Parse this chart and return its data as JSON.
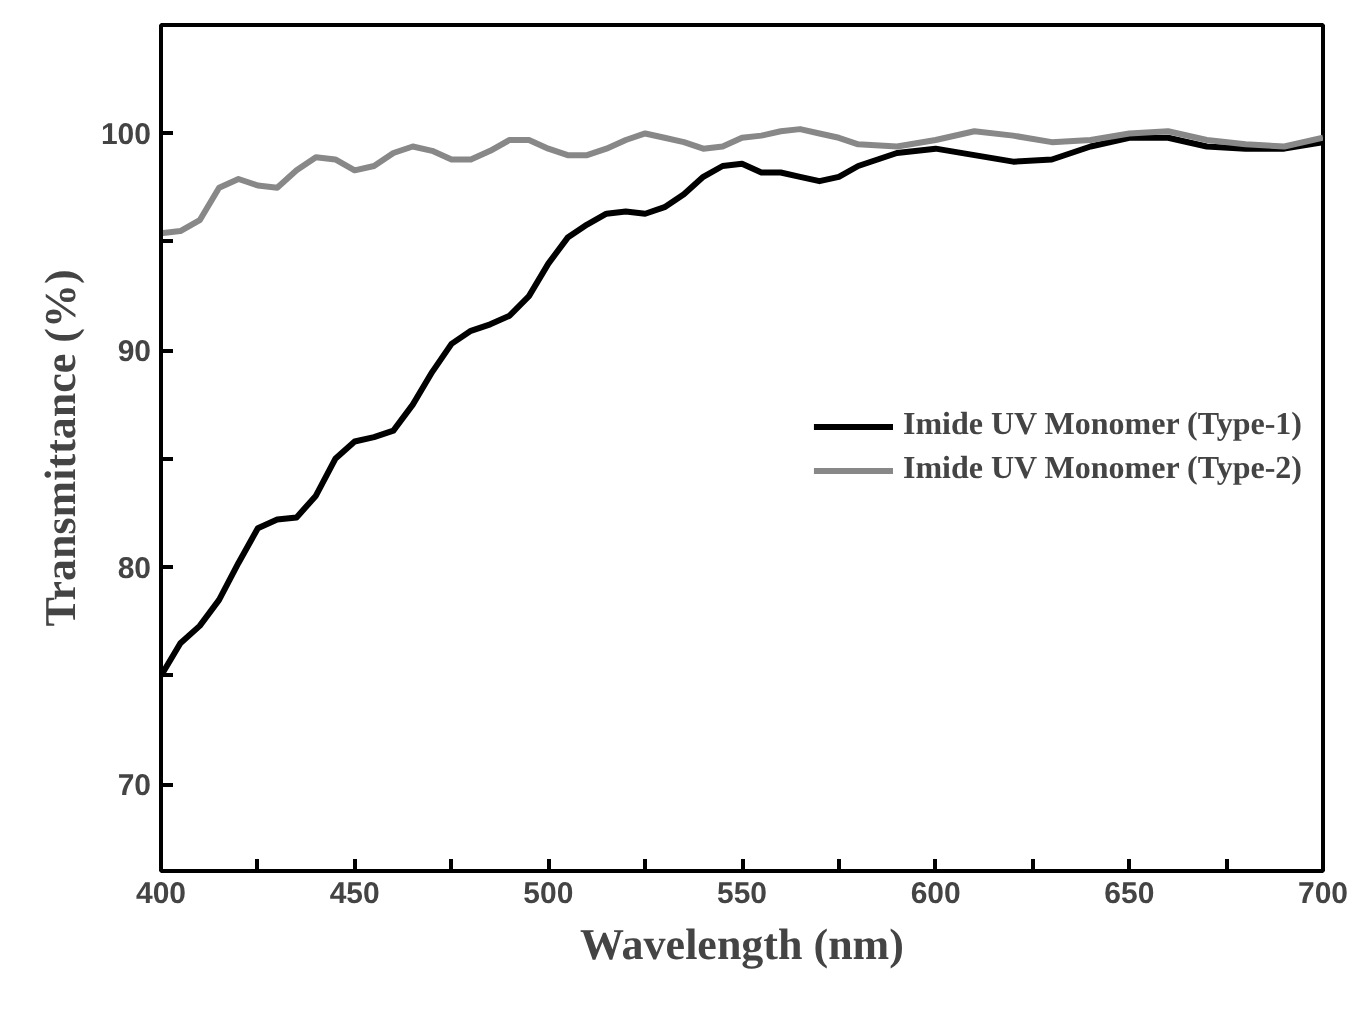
{
  "chart_data": {
    "type": "line",
    "xlabel": "Wavelength (nm)",
    "ylabel": "Transmittance (%)",
    "xlim": [
      400,
      700
    ],
    "xticks": [
      400,
      {
        "value": 425,
        "label": null
      },
      450,
      {
        "value": 475,
        "label": null
      },
      500,
      {
        "value": 525,
        "label": null
      },
      550,
      {
        "value": 575,
        "label": null
      },
      600,
      {
        "value": 625,
        "label": null
      },
      650,
      {
        "value": 675,
        "label": null
      },
      700
    ],
    "ylim": [
      66,
      105
    ],
    "yticks": [
      70,
      {
        "value": 75,
        "label": null
      },
      80,
      {
        "value": 85,
        "label": null
      },
      90,
      {
        "value": 95,
        "label": null
      },
      100
    ],
    "x": [
      400,
      405,
      410,
      415,
      420,
      425,
      430,
      435,
      440,
      445,
      450,
      455,
      460,
      465,
      470,
      475,
      480,
      485,
      490,
      495,
      500,
      505,
      510,
      515,
      520,
      525,
      530,
      535,
      540,
      545,
      550,
      555,
      560,
      565,
      570,
      575,
      580,
      590,
      600,
      610,
      620,
      630,
      640,
      650,
      660,
      670,
      680,
      690,
      700
    ],
    "series": [
      {
        "name": "Imide UV Monomer (Type-1)",
        "color": "#000000",
        "values": [
          75,
          76.5,
          77.3,
          78.5,
          80.2,
          81.8,
          82.2,
          82.3,
          83.3,
          85,
          85.8,
          86,
          86.3,
          87.5,
          89,
          90.3,
          90.9,
          91.2,
          91.6,
          92.5,
          94,
          95.2,
          95.8,
          96.3,
          96.4,
          96.3,
          96.6,
          97.2,
          98,
          98.5,
          98.6,
          98.2,
          98.2,
          98,
          97.8,
          98,
          98.5,
          99.1,
          99.3,
          99,
          98.7,
          98.8,
          99.4,
          99.8,
          99.8,
          99.4,
          99.3,
          99.3,
          99.6
        ]
      },
      {
        "name": "Imide UV Monomer (Type-2)",
        "color": "#888888",
        "values": [
          95.4,
          95.5,
          96,
          97.5,
          97.9,
          97.6,
          97.5,
          98.3,
          98.9,
          98.8,
          98.3,
          98.5,
          99.1,
          99.4,
          99.2,
          98.8,
          98.8,
          99.2,
          99.7,
          99.7,
          99.3,
          99,
          99,
          99.3,
          99.7,
          100,
          99.8,
          99.6,
          99.3,
          99.4,
          99.8,
          99.9,
          100.1,
          100.2,
          100,
          99.8,
          99.5,
          99.4,
          99.7,
          100.1,
          99.9,
          99.6,
          99.7,
          100,
          100.1,
          99.7,
          99.5,
          99.4,
          99.8
        ]
      }
    ],
    "grid": false,
    "legend": "right",
    "line_style": "solid",
    "marker": "none"
  }
}
